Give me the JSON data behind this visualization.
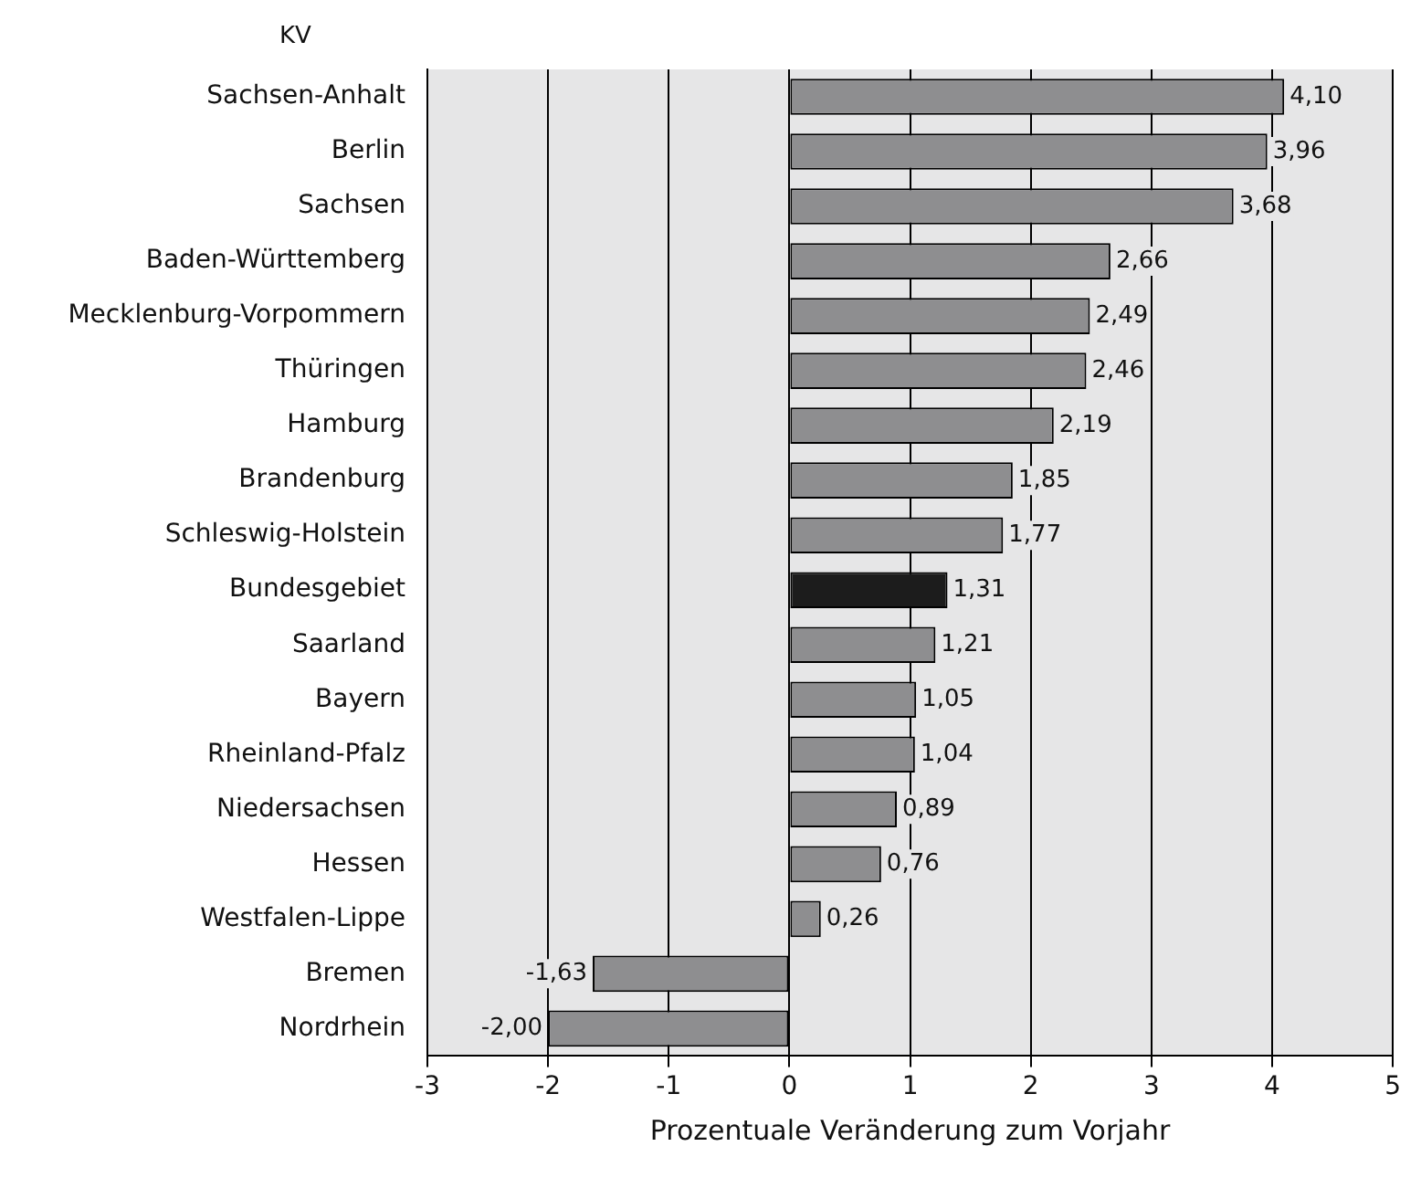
{
  "chart_data": {
    "type": "bar",
    "orientation": "horizontal",
    "ylabel": "KV",
    "xlabel": "Prozentuale Veränderung zum Vorjahr",
    "categories": [
      "Sachsen-Anhalt",
      "Berlin",
      "Sachsen",
      "Baden-Württemberg",
      "Mecklenburg-Vorpommern",
      "Thüringen",
      "Hamburg",
      "Brandenburg",
      "Schleswig-Holstein",
      "Bundesgebiet",
      "Saarland",
      "Bayern",
      "Rheinland-Pfalz",
      "Niedersachsen",
      "Hessen",
      "Westfalen-Lippe",
      "Bremen",
      "Nordrhein"
    ],
    "values": [
      4.1,
      3.96,
      3.68,
      2.66,
      2.49,
      2.46,
      2.19,
      1.85,
      1.77,
      1.31,
      1.21,
      1.05,
      1.04,
      0.89,
      0.76,
      0.26,
      -1.63,
      -2.0
    ],
    "value_labels": [
      "4,10",
      "3,96",
      "3,68",
      "2,66",
      "2,49",
      "2,46",
      "2,19",
      "1,85",
      "1,77",
      "1,31",
      "1,21",
      "1,05",
      "1,04",
      "0,89",
      "0,76",
      "0,26",
      "-1,63",
      "-2,00"
    ],
    "colors": [
      "#8e8e90",
      "#8e8e90",
      "#8e8e90",
      "#8e8e90",
      "#8e8e90",
      "#8e8e90",
      "#8e8e90",
      "#8e8e90",
      "#8e8e90",
      "#1c1c1c",
      "#8e8e90",
      "#8e8e90",
      "#8e8e90",
      "#8e8e90",
      "#8e8e90",
      "#8e8e90",
      "#8e8e90",
      "#8e8e90"
    ],
    "xlim": [
      -3,
      5
    ],
    "xticks": [
      -3,
      -2,
      -1,
      0,
      1,
      2,
      3,
      4,
      5
    ],
    "grid": "x",
    "legend": false
  }
}
